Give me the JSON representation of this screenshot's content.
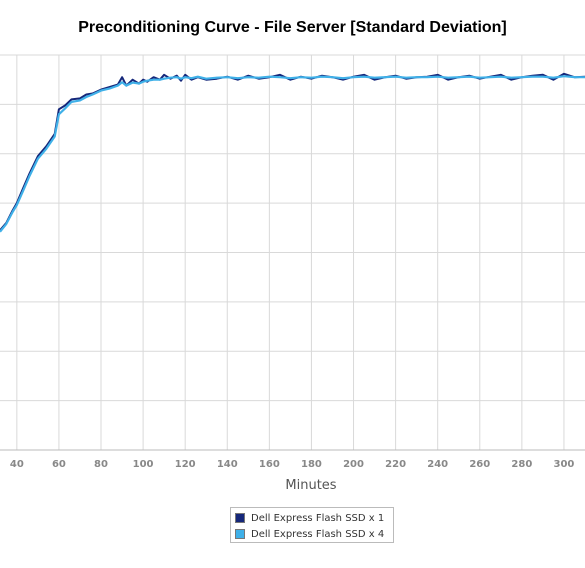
{
  "chart_data": {
    "type": "line",
    "title": "Preconditioning Curve - File Server [Standard Deviation]",
    "xlabel": "Minutes",
    "ylabel": "",
    "xlim": [
      32,
      310
    ],
    "ylim": [
      0,
      8
    ],
    "x_ticks": [
      40,
      60,
      80,
      100,
      120,
      140,
      160,
      180,
      200,
      220,
      240,
      260,
      280,
      300
    ],
    "grid": true,
    "legend_position": "bottom",
    "series": [
      {
        "name": "Dell Express Flash SSD x 1",
        "color": "#15277a",
        "x": [
          32,
          35,
          38,
          40,
          43,
          46,
          50,
          54,
          58,
          60,
          63,
          66,
          70,
          73,
          76,
          80,
          84,
          88,
          90,
          92,
          95,
          98,
          100,
          102,
          105,
          108,
          110,
          113,
          116,
          118,
          120,
          123,
          126,
          130,
          135,
          140,
          145,
          150,
          155,
          160,
          165,
          170,
          175,
          180,
          185,
          190,
          195,
          200,
          205,
          210,
          215,
          220,
          225,
          230,
          235,
          240,
          245,
          250,
          255,
          260,
          265,
          270,
          275,
          280,
          285,
          290,
          295,
          300,
          305,
          310
        ],
        "values": [
          4.45,
          4.6,
          4.85,
          5.0,
          5.3,
          5.6,
          5.95,
          6.15,
          6.4,
          6.9,
          6.98,
          7.1,
          7.12,
          7.2,
          7.22,
          7.3,
          7.35,
          7.4,
          7.55,
          7.38,
          7.5,
          7.42,
          7.5,
          7.46,
          7.55,
          7.5,
          7.6,
          7.52,
          7.58,
          7.48,
          7.6,
          7.5,
          7.55,
          7.5,
          7.52,
          7.56,
          7.5,
          7.58,
          7.52,
          7.55,
          7.6,
          7.5,
          7.56,
          7.52,
          7.58,
          7.55,
          7.5,
          7.56,
          7.6,
          7.5,
          7.55,
          7.58,
          7.52,
          7.55,
          7.56,
          7.6,
          7.5,
          7.55,
          7.58,
          7.52,
          7.56,
          7.6,
          7.5,
          7.55,
          7.58,
          7.6,
          7.5,
          7.62,
          7.55,
          7.56
        ]
      },
      {
        "name": "Dell Express Flash SSD x 4",
        "color": "#3fb0e8",
        "x": [
          32,
          35,
          38,
          40,
          43,
          46,
          50,
          54,
          58,
          60,
          63,
          66,
          70,
          73,
          76,
          80,
          84,
          88,
          90,
          92,
          95,
          98,
          100,
          102,
          105,
          108,
          110,
          113,
          116,
          118,
          120,
          123,
          126,
          130,
          135,
          140,
          145,
          150,
          155,
          160,
          165,
          170,
          175,
          180,
          185,
          190,
          195,
          200,
          205,
          210,
          215,
          220,
          225,
          230,
          235,
          240,
          245,
          250,
          255,
          260,
          265,
          270,
          275,
          280,
          285,
          290,
          295,
          300,
          305,
          310
        ],
        "values": [
          4.42,
          4.58,
          4.82,
          4.96,
          5.25,
          5.55,
          5.9,
          6.1,
          6.35,
          6.8,
          6.92,
          7.05,
          7.08,
          7.15,
          7.2,
          7.28,
          7.32,
          7.38,
          7.45,
          7.38,
          7.44,
          7.42,
          7.46,
          7.48,
          7.5,
          7.5,
          7.52,
          7.54,
          7.55,
          7.52,
          7.55,
          7.53,
          7.56,
          7.52,
          7.54,
          7.55,
          7.53,
          7.55,
          7.54,
          7.56,
          7.55,
          7.53,
          7.55,
          7.54,
          7.56,
          7.55,
          7.53,
          7.55,
          7.56,
          7.54,
          7.55,
          7.56,
          7.54,
          7.55,
          7.55,
          7.56,
          7.54,
          7.55,
          7.56,
          7.54,
          7.55,
          7.56,
          7.54,
          7.55,
          7.56,
          7.56,
          7.54,
          7.57,
          7.55,
          7.55
        ]
      }
    ]
  }
}
